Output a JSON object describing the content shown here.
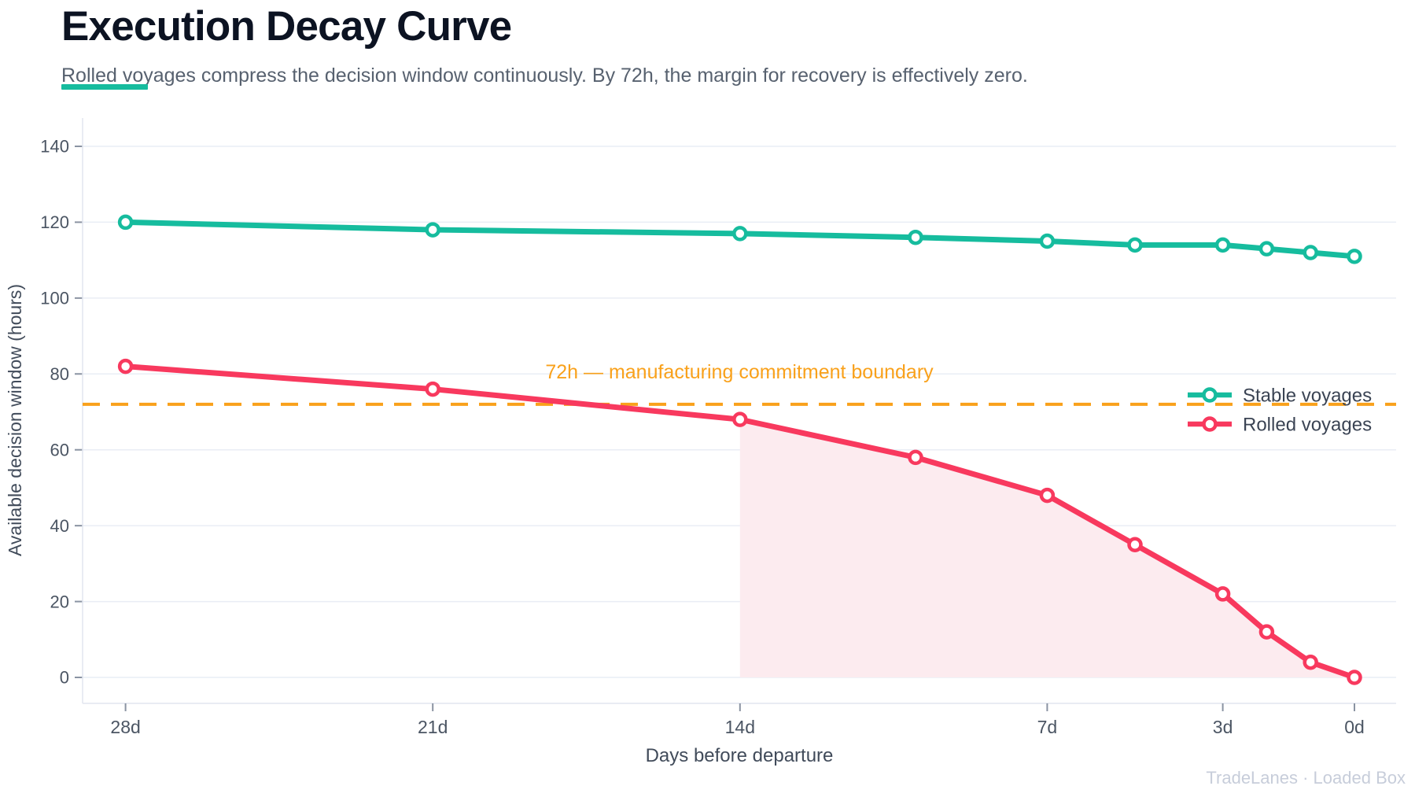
{
  "header": {
    "title": "Execution Decay Curve",
    "subtitle": "Rolled voyages compress the decision window continuously. By 72h, the margin for recovery is effectively zero.",
    "accent_color": "#16bc9e"
  },
  "footer": {
    "text": "TradeLanes · Loaded Box"
  },
  "chart_data": {
    "type": "line",
    "title": "Execution Decay Curve",
    "xlabel": "Days before departure",
    "ylabel": "Available decision window (hours)",
    "x_days_before_departure": [
      28,
      21,
      14,
      10,
      7,
      5,
      3,
      2,
      1,
      0
    ],
    "series": [
      {
        "name": "Stable voyages",
        "color": "#16bc9e",
        "values": [
          120,
          118,
          117,
          116,
          115,
          114,
          114,
          113,
          112,
          111
        ]
      },
      {
        "name": "Rolled voyages",
        "color": "#f8395e",
        "values": [
          82,
          76,
          68,
          58,
          48,
          35,
          22,
          12,
          4,
          0
        ],
        "area_fill": {
          "from_day": 14,
          "to_day": 0,
          "baseline_value": 0,
          "color": "#fcebef"
        }
      }
    ],
    "threshold": {
      "value": 72,
      "label": "72h — manufacturing commitment boundary",
      "color": "#f9a11b",
      "style": "dashed"
    },
    "x_ticks": {
      "days": [
        28,
        21,
        14,
        7,
        3,
        0
      ],
      "labels": [
        "28d",
        "21d",
        "14d",
        "7d",
        "3d",
        "0d"
      ]
    },
    "y_ticks": [
      0,
      20,
      40,
      60,
      80,
      100,
      120,
      140
    ],
    "ylim": [
      -7,
      147
    ],
    "x_axis_reversed": true,
    "grid": "horizontal",
    "legend_position": "middle-right",
    "styles": {
      "grid_color": "#e9edf5",
      "axis_line_color": "#e2e6ef",
      "tick_color": "#8a93a2",
      "tick_label_color": "#4b5563",
      "axis_title_color": "#414b5a",
      "legend_text_color": "#3b4454"
    }
  }
}
